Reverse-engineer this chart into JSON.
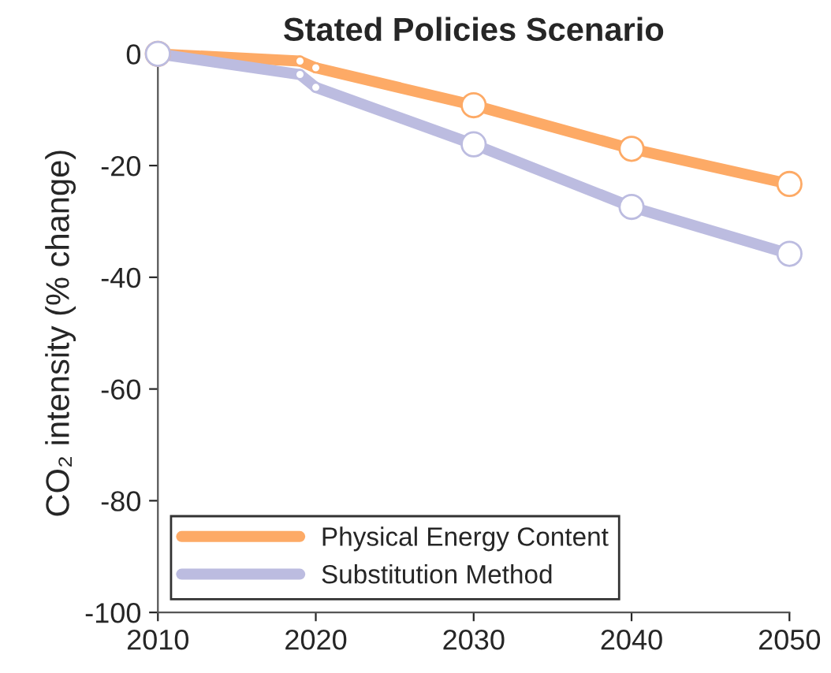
{
  "chart_data": {
    "type": "line",
    "title": "Stated Policies Scenario",
    "ylabel": "CO₂ intensity (% change)",
    "x": [
      2010,
      2019,
      2020,
      2030,
      2040,
      2050
    ],
    "series": [
      {
        "name": "Physical Energy Content",
        "color": "#fdaa66",
        "values": [
          0,
          -1.3,
          -2.5,
          -9.2,
          -17,
          -23.3
        ]
      },
      {
        "name": "Substitution Method",
        "color": "#bcbce0",
        "values": [
          0,
          -3.7,
          -6,
          -16.2,
          -27.4,
          -35.8
        ]
      }
    ],
    "xlim": [
      2010,
      2050
    ],
    "xticks": [
      2010,
      2020,
      2030,
      2040,
      2050
    ],
    "ylim": [
      -100,
      0
    ],
    "yticks": [
      -100,
      -80,
      -60,
      -40,
      -20,
      0
    ],
    "marker": "circle",
    "line_style": "solid",
    "legend": "bottom left",
    "grid": false
  }
}
